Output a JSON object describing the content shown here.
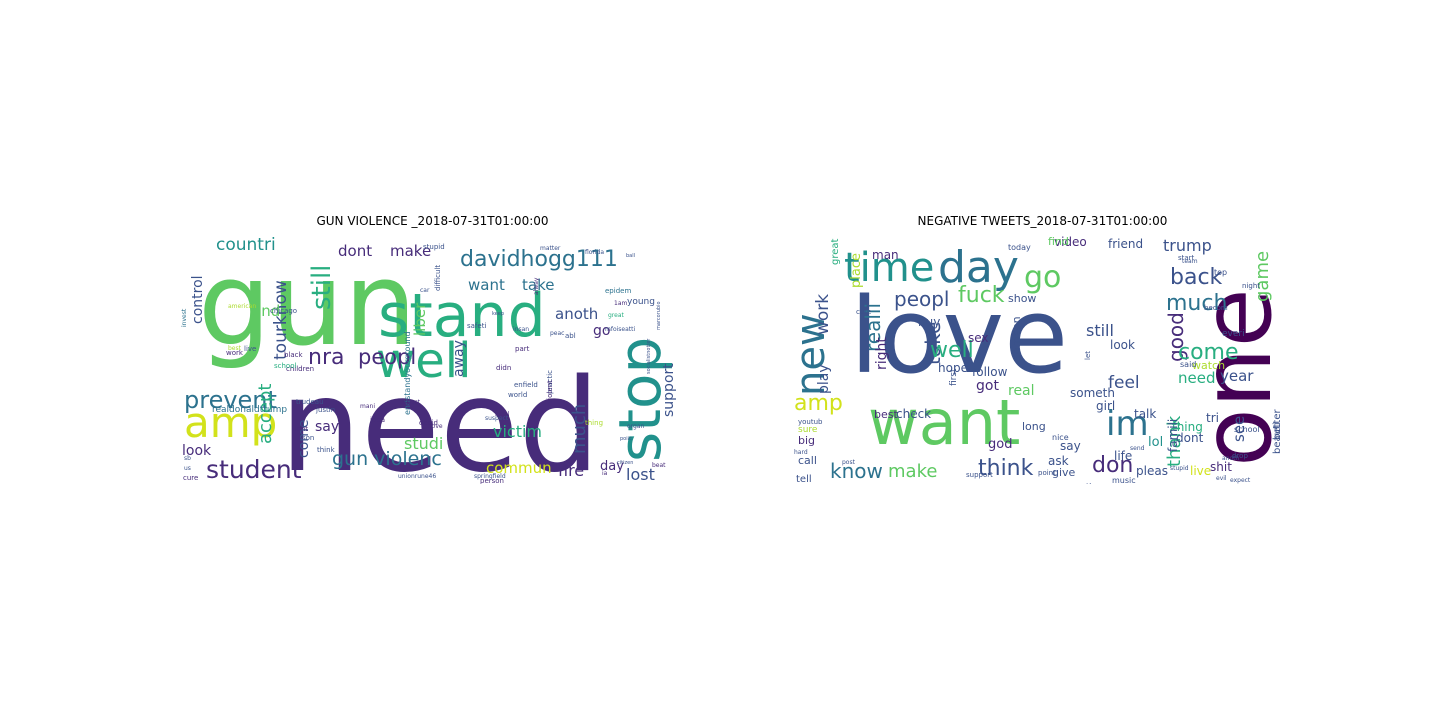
{
  "figure": {
    "left_title": "GUN VIOLENCE _2018-07-31T01:00:00",
    "right_title": "NEGATIVE TWEETS_2018-07-31T01:00:00"
  },
  "palette": [
    "#440154",
    "#472c7a",
    "#3b528b",
    "#2c728e",
    "#21918c",
    "#28ae80",
    "#5ec962",
    "#addc30",
    "#d2e21b"
  ],
  "left_cloud": {
    "words": [
      {
        "t": "gun",
        "c": "#5ec962"
      },
      {
        "t": "need",
        "c": "#472c7a"
      },
      {
        "t": "stand",
        "c": "#28ae80"
      },
      {
        "t": "well",
        "c": "#28ae80"
      },
      {
        "t": "stop",
        "c": "#21918c"
      },
      {
        "t": "amp",
        "c": "#d2e21b"
      },
      {
        "t": "davidhogg111",
        "c": "#2c728e"
      },
      {
        "t": "prevent",
        "c": "#2c728e"
      },
      {
        "t": "student",
        "c": "#472c7a"
      },
      {
        "t": "nra",
        "c": "#472c7a"
      },
      {
        "t": "peopl",
        "c": "#472c7a"
      },
      {
        "t": "still",
        "c": "#28ae80"
      },
      {
        "t": "countri",
        "c": "#21918c"
      },
      {
        "t": "gun violenc",
        "c": "#2c728e"
      },
      {
        "t": "victim",
        "c": "#28ae80"
      },
      {
        "t": "commun",
        "c": "#d2e21b"
      },
      {
        "t": "fire",
        "c": "#472c7a"
      },
      {
        "t": "lost",
        "c": "#3b528b"
      },
      {
        "t": "day",
        "c": "#472c7a"
      },
      {
        "t": "much",
        "c": "#3b528b"
      },
      {
        "t": "studi",
        "c": "#5ec962"
      },
      {
        "t": "control",
        "c": "#3b528b"
      },
      {
        "t": "accept",
        "c": "#28ae80"
      },
      {
        "t": "tourknow",
        "c": "#3b528b"
      },
      {
        "t": "dont",
        "c": "#472c7a"
      },
      {
        "t": "make",
        "c": "#472c7a"
      },
      {
        "t": "want",
        "c": "#2c728e"
      },
      {
        "t": "take",
        "c": "#2c728e"
      },
      {
        "t": "anoth",
        "c": "#3b528b"
      },
      {
        "t": "liber",
        "c": "#5ec962"
      },
      {
        "t": "away",
        "c": "#3b528b"
      },
      {
        "t": "go",
        "c": "#472c7a"
      },
      {
        "t": "support",
        "c": "#3b528b"
      },
      {
        "t": "look",
        "c": "#472c7a"
      },
      {
        "t": "say",
        "c": "#472c7a"
      },
      {
        "t": "come",
        "c": "#3b528b"
      },
      {
        "t": "end",
        "c": "#5ec962"
      },
      {
        "t": "realdonaldtrump",
        "c": "#2c728e"
      },
      {
        "t": "justin",
        "c": "#3b528b"
      },
      {
        "t": "trudeau",
        "c": "#3b528b"
      },
      {
        "t": "children",
        "c": "#472c7a"
      },
      {
        "t": "endstandyourground",
        "c": "#2c728e"
      },
      {
        "t": "fight",
        "c": "#472c7a"
      },
      {
        "t": "son",
        "c": "#3b528b"
      },
      {
        "t": "school",
        "c": "#28ae80"
      },
      {
        "t": "black",
        "c": "#472c7a"
      },
      {
        "t": "live",
        "c": "#3b528b"
      },
      {
        "t": "work",
        "c": "#472c7a"
      },
      {
        "t": "chicago",
        "c": "#3b528b"
      },
      {
        "t": "invest",
        "c": "#2c728e"
      },
      {
        "t": "american",
        "c": "#addc30"
      },
      {
        "t": "florida",
        "c": "#3b528b"
      },
      {
        "t": "young",
        "c": "#3b528b"
      },
      {
        "t": "matter",
        "c": "#3b528b"
      },
      {
        "t": "epidem",
        "c": "#2c728e"
      },
      {
        "t": "stupid",
        "c": "#3b528b"
      },
      {
        "t": "difficult",
        "c": "#3b528b"
      },
      {
        "t": "safeti",
        "c": "#3b528b"
      },
      {
        "t": "insan",
        "c": "#3b528b"
      },
      {
        "t": "enfield",
        "c": "#3b528b"
      },
      {
        "t": "world",
        "c": "#3b528b"
      },
      {
        "t": "didn",
        "c": "#472c7a"
      },
      {
        "t": "legal",
        "c": "#472c7a"
      },
      {
        "t": "suspect",
        "c": "#3b528b"
      },
      {
        "t": "person",
        "c": "#472c7a"
      },
      {
        "t": "springfield",
        "c": "#3b528b"
      },
      {
        "t": "unionrune46",
        "c": "#3b528b"
      },
      {
        "t": "probl",
        "c": "#472c7a"
      },
      {
        "t": "beat",
        "c": "#472c7a"
      },
      {
        "t": "part",
        "c": "#472c7a"
      },
      {
        "t": "aspect",
        "c": "#472c7a"
      },
      {
        "t": "idea",
        "c": "#472c7a"
      },
      {
        "t": "think",
        "c": "#3b528b"
      },
      {
        "t": "decid",
        "c": "#472c7a"
      },
      {
        "t": "love",
        "c": "#472c7a"
      },
      {
        "t": "mani",
        "c": "#472c7a"
      },
      {
        "t": "keep",
        "c": "#3b528b"
      },
      {
        "t": "cure",
        "c": "#472c7a"
      },
      {
        "t": "sb",
        "c": "#3b528b"
      },
      {
        "t": "us",
        "c": "#3b528b"
      },
      {
        "t": "thing",
        "c": "#addc30"
      },
      {
        "t": "practic",
        "c": "#3b528b"
      },
      {
        "t": "violent",
        "c": "#472c7a"
      },
      {
        "t": "abl",
        "c": "#3b528b"
      },
      {
        "t": "best",
        "c": "#addc30"
      },
      {
        "t": "mfoiseatti",
        "c": "#3b528b"
      },
      {
        "t": "socialistnotter",
        "c": "#3b528b"
      },
      {
        "t": "marcorubio",
        "c": "#3b528b"
      },
      {
        "t": "ia",
        "c": "#472c7a"
      },
      {
        "t": "1am",
        "c": "#472c7a"
      },
      {
        "t": "organ",
        "c": "#3b528b"
      },
      {
        "t": "citizen",
        "c": "#3b528b"
      },
      {
        "t": "poiic",
        "c": "#3b528b"
      },
      {
        "t": "ball",
        "c": "#3b528b"
      },
      {
        "t": "alway",
        "c": "#472c7a"
      },
      {
        "t": "great",
        "c": "#28ae80"
      },
      {
        "t": "peac",
        "c": "#3b528b"
      },
      {
        "t": "car",
        "c": "#3b528b"
      }
    ]
  },
  "right_cloud": {
    "words": [
      {
        "t": "love",
        "c": "#3b528b"
      },
      {
        "t": "one",
        "c": "#440154"
      },
      {
        "t": "want",
        "c": "#5ec962"
      },
      {
        "t": "time",
        "c": "#21918c"
      },
      {
        "t": "day",
        "c": "#2c728e"
      },
      {
        "t": "new",
        "c": "#2c728e"
      },
      {
        "t": "go",
        "c": "#5ec962"
      },
      {
        "t": "fuck",
        "c": "#5ec962"
      },
      {
        "t": "peopl",
        "c": "#3b528b"
      },
      {
        "t": "back",
        "c": "#3b528b"
      },
      {
        "t": "much",
        "c": "#2c728e"
      },
      {
        "t": "im",
        "c": "#2c728e"
      },
      {
        "t": "good",
        "c": "#472c7a"
      },
      {
        "t": "come",
        "c": "#28ae80"
      },
      {
        "t": "thank",
        "c": "#28ae80"
      },
      {
        "t": "take",
        "c": "#3b528b"
      },
      {
        "t": "realli",
        "c": "#2c728e"
      },
      {
        "t": "know",
        "c": "#2c728e"
      },
      {
        "t": "make",
        "c": "#5ec962"
      },
      {
        "t": "think",
        "c": "#3b528b"
      },
      {
        "t": "don",
        "c": "#472c7a"
      },
      {
        "t": "work",
        "c": "#3b528b"
      },
      {
        "t": "amp",
        "c": "#d2e21b"
      },
      {
        "t": "well",
        "c": "#28ae80"
      },
      {
        "t": "feel",
        "c": "#3b528b"
      },
      {
        "t": "still",
        "c": "#3b528b"
      },
      {
        "t": "trump",
        "c": "#3b528b"
      },
      {
        "t": "game",
        "c": "#5ec962"
      },
      {
        "t": "need",
        "c": "#28ae80"
      },
      {
        "t": "year",
        "c": "#3b528b"
      },
      {
        "t": "lol",
        "c": "#21918c"
      },
      {
        "t": "see",
        "c": "#3b528b"
      },
      {
        "t": "right",
        "c": "#472c7a"
      },
      {
        "t": "play",
        "c": "#3b528b"
      },
      {
        "t": "got",
        "c": "#472c7a"
      },
      {
        "t": "man",
        "c": "#472c7a"
      },
      {
        "t": "place",
        "c": "#addc30"
      },
      {
        "t": "video",
        "c": "#472c7a"
      },
      {
        "t": "friend",
        "c": "#3b528b"
      },
      {
        "t": "find",
        "c": "#5ec962"
      },
      {
        "t": "today",
        "c": "#3b528b"
      },
      {
        "t": "show",
        "c": "#3b528b"
      },
      {
        "t": "sex",
        "c": "#472c7a"
      },
      {
        "t": "buy",
        "c": "#3b528b"
      },
      {
        "t": "hope",
        "c": "#3b528b"
      },
      {
        "t": "follow",
        "c": "#3b528b"
      },
      {
        "t": "someon",
        "c": "#3b528b"
      },
      {
        "t": "watch",
        "c": "#addc30"
      },
      {
        "t": "look",
        "c": "#3b528b"
      },
      {
        "t": "tri",
        "c": "#3b528b"
      },
      {
        "t": "everi",
        "c": "#3b528b"
      },
      {
        "t": "thing",
        "c": "#28ae80"
      },
      {
        "t": "talk",
        "c": "#3b528b"
      },
      {
        "t": "girl",
        "c": "#3b528b"
      },
      {
        "t": "real",
        "c": "#5ec962"
      },
      {
        "t": "someth",
        "c": "#3b528b"
      },
      {
        "t": "dont",
        "c": "#3b528b"
      },
      {
        "t": "life",
        "c": "#3b528b"
      },
      {
        "t": "god",
        "c": "#472c7a"
      },
      {
        "t": "say",
        "c": "#3b528b"
      },
      {
        "t": "ask",
        "c": "#3b528b"
      },
      {
        "t": "famili",
        "c": "#3b528b"
      },
      {
        "t": "live",
        "c": "#d2e21b"
      },
      {
        "t": "shit",
        "c": "#472c7a"
      },
      {
        "t": "pleas",
        "c": "#3b528b"
      },
      {
        "t": "give",
        "c": "#3b528b"
      },
      {
        "t": "noth",
        "c": "#3b528b"
      },
      {
        "t": "best",
        "c": "#472c7a"
      },
      {
        "t": "check",
        "c": "#3b528b"
      },
      {
        "t": "big",
        "c": "#472c7a"
      },
      {
        "t": "call",
        "c": "#3b528b"
      },
      {
        "t": "tell",
        "c": "#3b528b"
      },
      {
        "t": "long",
        "c": "#3b528b"
      },
      {
        "t": "first",
        "c": "#3b528b"
      },
      {
        "t": "beauti",
        "c": "#3b528b"
      },
      {
        "t": "better",
        "c": "#3b528b"
      },
      {
        "t": "said",
        "c": "#3b528b"
      },
      {
        "t": "school",
        "c": "#3b528b"
      },
      {
        "t": "music",
        "c": "#3b528b"
      },
      {
        "t": "sure",
        "c": "#addc30"
      },
      {
        "t": "great",
        "c": "#28ae80"
      },
      {
        "t": "let",
        "c": "#3b528b"
      },
      {
        "t": "night",
        "c": "#3b528b"
      },
      {
        "t": "becom",
        "c": "#3b528b"
      },
      {
        "t": "start",
        "c": "#3b528b"
      },
      {
        "t": "point",
        "c": "#3b528b"
      },
      {
        "t": "nice",
        "c": "#3b528b"
      },
      {
        "t": "hard",
        "c": "#3b528b"
      },
      {
        "t": "post",
        "c": "#3b528b"
      },
      {
        "t": "anoth",
        "c": "#3b528b"
      },
      {
        "t": "support",
        "c": "#3b528b"
      },
      {
        "t": "send",
        "c": "#3b528b"
      },
      {
        "t": "expect",
        "c": "#3b528b"
      },
      {
        "t": "evil",
        "c": "#3b528b"
      },
      {
        "t": "drop",
        "c": "#3b528b"
      },
      {
        "t": "stupid",
        "c": "#3b528b"
      },
      {
        "t": "youtub",
        "c": "#3b528b"
      },
      {
        "t": "cute",
        "c": "#3b528b"
      },
      {
        "t": "team",
        "c": "#3b528b"
      },
      {
        "t": "top",
        "c": "#3b528b"
      }
    ]
  }
}
